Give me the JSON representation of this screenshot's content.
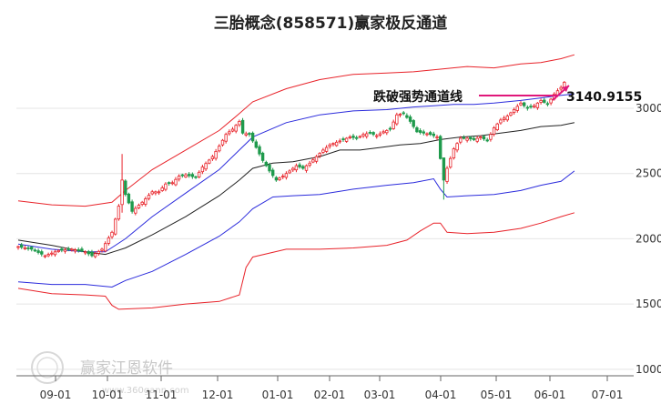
{
  "chart_data": {
    "type": "candlestick",
    "title": "三胎概念(858571)赢家极反通道",
    "annotation": {
      "label": "跌破强势通道线",
      "value": "3140.9155"
    },
    "x_ticks": [
      "09-01",
      "10-01",
      "11-01",
      "12-01",
      "01-01",
      "02-01",
      "03-01",
      "04-01",
      "05-01",
      "06-01",
      "07-01"
    ],
    "y_ticks": [
      1000,
      1500,
      2000,
      2500,
      3000
    ],
    "ylim": [
      950,
      3450
    ],
    "watermark": {
      "brand": "赢家江恩软件",
      "url": "www.360gann.com"
    },
    "colors": {
      "up": "#e8232a",
      "down": "#1f9a4c",
      "channel_outer": "#e8232a",
      "channel_inner": "#2b2bdc",
      "midline": "#222222",
      "arrow": "#e0177a"
    },
    "series": {
      "price_keypoints": [
        [
          0,
          1940
        ],
        [
          4,
          1920
        ],
        [
          8,
          1870
        ],
        [
          12,
          1910
        ],
        [
          16,
          1920
        ],
        [
          20,
          1900
        ],
        [
          22,
          1870
        ],
        [
          25,
          1920
        ],
        [
          28,
          2050
        ],
        [
          30,
          2250
        ],
        [
          31,
          2450
        ],
        [
          32,
          2340
        ],
        [
          34,
          2210
        ],
        [
          37,
          2280
        ],
        [
          40,
          2360
        ],
        [
          42,
          2360
        ],
        [
          44,
          2420
        ],
        [
          46,
          2430
        ],
        [
          48,
          2480
        ],
        [
          50,
          2490
        ],
        [
          53,
          2470
        ],
        [
          55,
          2550
        ],
        [
          58,
          2630
        ],
        [
          60,
          2710
        ],
        [
          62,
          2800
        ],
        [
          64,
          2840
        ],
        [
          66,
          2900
        ],
        [
          67,
          2810
        ],
        [
          69,
          2800
        ],
        [
          71,
          2700
        ],
        [
          73,
          2600
        ],
        [
          75,
          2520
        ],
        [
          77,
          2450
        ],
        [
          79,
          2480
        ],
        [
          81,
          2520
        ],
        [
          83,
          2560
        ],
        [
          85,
          2540
        ],
        [
          87,
          2580
        ],
        [
          89,
          2630
        ],
        [
          91,
          2680
        ],
        [
          93,
          2720
        ],
        [
          95,
          2740
        ],
        [
          97,
          2760
        ],
        [
          99,
          2780
        ],
        [
          101,
          2770
        ],
        [
          103,
          2800
        ],
        [
          105,
          2810
        ],
        [
          107,
          2790
        ],
        [
          109,
          2820
        ],
        [
          111,
          2840
        ],
        [
          113,
          2950
        ],
        [
          115,
          2960
        ],
        [
          117,
          2900
        ],
        [
          119,
          2820
        ],
        [
          121,
          2810
        ],
        [
          123,
          2800
        ],
        [
          125,
          2780
        ],
        [
          127,
          2450
        ],
        [
          128,
          2540
        ],
        [
          130,
          2690
        ],
        [
          132,
          2770
        ],
        [
          134,
          2770
        ],
        [
          136,
          2760
        ],
        [
          138,
          2780
        ],
        [
          140,
          2750
        ],
        [
          142,
          2850
        ],
        [
          144,
          2910
        ],
        [
          146,
          2940
        ],
        [
          148,
          2990
        ],
        [
          150,
          3040
        ],
        [
          152,
          3000
        ],
        [
          154,
          3020
        ],
        [
          156,
          3060
        ],
        [
          158,
          3030
        ],
        [
          160,
          3110
        ],
        [
          162,
          3160
        ],
        [
          163,
          3200
        ]
      ],
      "wick_overrides": {
        "31": [
          2200,
          2650
        ],
        "127": [
          2300,
          2560
        ]
      },
      "outer_upper": [
        [
          0,
          2290
        ],
        [
          10,
          2260
        ],
        [
          20,
          2250
        ],
        [
          28,
          2280
        ],
        [
          32,
          2370
        ],
        [
          40,
          2530
        ],
        [
          50,
          2680
        ],
        [
          60,
          2830
        ],
        [
          66,
          2960
        ],
        [
          70,
          3050
        ],
        [
          80,
          3150
        ],
        [
          90,
          3220
        ],
        [
          100,
          3260
        ],
        [
          110,
          3270
        ],
        [
          118,
          3280
        ],
        [
          126,
          3300
        ],
        [
          134,
          3320
        ],
        [
          142,
          3310
        ],
        [
          150,
          3340
        ],
        [
          156,
          3350
        ],
        [
          162,
          3380
        ],
        [
          166,
          3410
        ]
      ],
      "inner_upper": [
        [
          0,
          1960
        ],
        [
          10,
          1920
        ],
        [
          20,
          1900
        ],
        [
          26,
          1900
        ],
        [
          32,
          2000
        ],
        [
          40,
          2170
        ],
        [
          50,
          2350
        ],
        [
          60,
          2530
        ],
        [
          66,
          2680
        ],
        [
          70,
          2780
        ],
        [
          80,
          2890
        ],
        [
          90,
          2950
        ],
        [
          100,
          2980
        ],
        [
          110,
          2990
        ],
        [
          118,
          3010
        ],
        [
          124,
          3020
        ],
        [
          130,
          3030
        ],
        [
          136,
          3030
        ],
        [
          142,
          3040
        ],
        [
          150,
          3060
        ],
        [
          156,
          3080
        ],
        [
          162,
          3100
        ],
        [
          166,
          3110
        ]
      ],
      "midline": [
        [
          0,
          1990
        ],
        [
          10,
          1950
        ],
        [
          20,
          1900
        ],
        [
          26,
          1880
        ],
        [
          32,
          1930
        ],
        [
          40,
          2030
        ],
        [
          50,
          2170
        ],
        [
          60,
          2330
        ],
        [
          66,
          2450
        ],
        [
          70,
          2540
        ],
        [
          76,
          2580
        ],
        [
          82,
          2590
        ],
        [
          90,
          2630
        ],
        [
          96,
          2680
        ],
        [
          102,
          2680
        ],
        [
          108,
          2700
        ],
        [
          114,
          2720
        ],
        [
          120,
          2730
        ],
        [
          126,
          2760
        ],
        [
          132,
          2780
        ],
        [
          138,
          2790
        ],
        [
          144,
          2810
        ],
        [
          150,
          2830
        ],
        [
          156,
          2860
        ],
        [
          162,
          2870
        ],
        [
          166,
          2890
        ]
      ],
      "inner_lower": [
        [
          0,
          1670
        ],
        [
          10,
          1650
        ],
        [
          20,
          1650
        ],
        [
          28,
          1630
        ],
        [
          32,
          1680
        ],
        [
          40,
          1750
        ],
        [
          50,
          1880
        ],
        [
          60,
          2020
        ],
        [
          66,
          2130
        ],
        [
          70,
          2230
        ],
        [
          76,
          2320
        ],
        [
          82,
          2330
        ],
        [
          90,
          2340
        ],
        [
          100,
          2380
        ],
        [
          110,
          2410
        ],
        [
          118,
          2430
        ],
        [
          124,
          2460
        ],
        [
          126,
          2380
        ],
        [
          128,
          2320
        ],
        [
          134,
          2330
        ],
        [
          142,
          2340
        ],
        [
          150,
          2370
        ],
        [
          156,
          2410
        ],
        [
          162,
          2440
        ],
        [
          166,
          2520
        ]
      ],
      "outer_lower": [
        [
          0,
          1620
        ],
        [
          10,
          1580
        ],
        [
          20,
          1570
        ],
        [
          26,
          1560
        ],
        [
          28,
          1490
        ],
        [
          30,
          1460
        ],
        [
          40,
          1470
        ],
        [
          50,
          1500
        ],
        [
          60,
          1520
        ],
        [
          66,
          1570
        ],
        [
          68,
          1780
        ],
        [
          70,
          1860
        ],
        [
          80,
          1920
        ],
        [
          90,
          1920
        ],
        [
          100,
          1930
        ],
        [
          110,
          1950
        ],
        [
          116,
          1990
        ],
        [
          120,
          2060
        ],
        [
          124,
          2120
        ],
        [
          126,
          2120
        ],
        [
          128,
          2050
        ],
        [
          134,
          2040
        ],
        [
          142,
          2050
        ],
        [
          150,
          2080
        ],
        [
          156,
          2120
        ],
        [
          162,
          2170
        ],
        [
          166,
          2200
        ]
      ]
    }
  }
}
